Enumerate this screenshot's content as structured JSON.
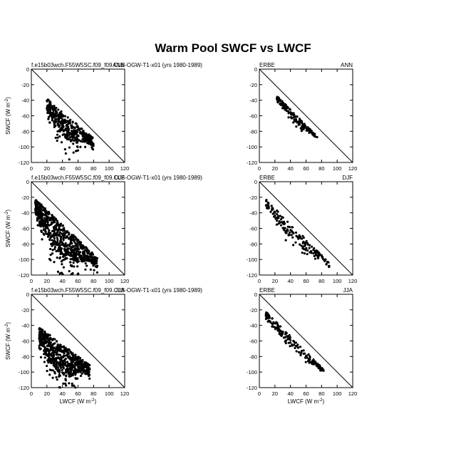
{
  "figure": {
    "title": "Warm Pool SWCF vs LWCF"
  },
  "chart_data": [
    {
      "type": "scatter",
      "left_label": "f.e15b03wch.F55W5SC.f09_f09.CLB-OGW-T1-x01 (yrs 1980-1989)",
      "right_label": "ANN",
      "xlabel": "",
      "ylabel": "SWCF (W m^-2)",
      "xlim": [
        0,
        120
      ],
      "ylim": [
        -120,
        0
      ],
      "xticks": [
        "0",
        "20",
        "40",
        "60",
        "80",
        "100",
        "120"
      ],
      "yticks": [
        "0",
        "-20",
        "-40",
        "-60",
        "-80",
        "-100",
        "-120"
      ],
      "reference_line": [
        [
          0,
          0
        ],
        [
          120,
          -120
        ]
      ],
      "cloud": {
        "xmin": 20,
        "xmax": 80,
        "base": -38,
        "slope": -0.85,
        "spread": 30,
        "tail": 0.9,
        "n": 420,
        "seed": 11
      }
    },
    {
      "type": "scatter",
      "left_label": "ERBE",
      "right_label": "ANN",
      "xlabel": "",
      "ylabel": "",
      "xlim": [
        0,
        120
      ],
      "ylim": [
        -120,
        0
      ],
      "xticks": [
        "0",
        "20",
        "40",
        "60",
        "80",
        "100",
        "120"
      ],
      "yticks": [
        "0",
        "-20",
        "-40",
        "-60",
        "-80",
        "-100",
        "-120"
      ],
      "reference_line": [
        [
          0,
          0
        ],
        [
          120,
          -120
        ]
      ],
      "cloud": {
        "xmin": 22,
        "xmax": 75,
        "base": -34,
        "slope": -1.0,
        "spread": 10,
        "tail": 0.6,
        "n": 160,
        "seed": 23
      }
    },
    {
      "type": "scatter",
      "left_label": "f.e15b03wch.F55W5SC.f09_f09.CLB-OGW-T1-x01 (yrs 1980-1989)",
      "right_label": "DJF",
      "xlabel": "",
      "ylabel": "SWCF (W m^-2)",
      "xlim": [
        0,
        120
      ],
      "ylim": [
        -120,
        0
      ],
      "xticks": [
        "0",
        "20",
        "40",
        "60",
        "80",
        "100",
        "120"
      ],
      "yticks": [
        "0",
        "-20",
        "-40",
        "-60",
        "-80",
        "-100",
        "-120"
      ],
      "reference_line": [
        [
          0,
          0
        ],
        [
          120,
          -120
        ]
      ],
      "cloud": {
        "xmin": 5,
        "xmax": 85,
        "base": -22,
        "slope": -0.95,
        "spread": 40,
        "tail": 0.9,
        "n": 700,
        "seed": 37
      }
    },
    {
      "type": "scatter",
      "left_label": "ERBE",
      "right_label": "DJF",
      "xlabel": "",
      "ylabel": "",
      "xlim": [
        0,
        120
      ],
      "ylim": [
        -120,
        0
      ],
      "xticks": [
        "0",
        "20",
        "40",
        "60",
        "80",
        "100",
        "120"
      ],
      "yticks": [
        "0",
        "-20",
        "-40",
        "-60",
        "-80",
        "-100",
        "-120"
      ],
      "reference_line": [
        [
          0,
          0
        ],
        [
          120,
          -120
        ]
      ],
      "cloud": {
        "xmin": 8,
        "xmax": 90,
        "base": -22,
        "slope": -1.0,
        "spread": 18,
        "tail": 0.6,
        "n": 170,
        "seed": 41
      }
    },
    {
      "type": "scatter",
      "left_label": "f.e15b03wch.F55W5SC.f09_f09.CLB-OGW-T1-x01 (yrs 1980-1989)",
      "right_label": "JJA",
      "xlabel": "LWCF (W m^-2)",
      "ylabel": "SWCF (W m^-2)",
      "xlim": [
        0,
        120
      ],
      "ylim": [
        -120,
        0
      ],
      "xticks": [
        "0",
        "20",
        "40",
        "60",
        "80",
        "100",
        "120"
      ],
      "yticks": [
        "0",
        "-20",
        "-40",
        "-60",
        "-80",
        "-100",
        "-120"
      ],
      "reference_line": [
        [
          0,
          0
        ],
        [
          120,
          -120
        ]
      ],
      "cloud": {
        "xmin": 10,
        "xmax": 75,
        "base": -42,
        "slope": -0.75,
        "spread": 40,
        "tail": 0.8,
        "n": 650,
        "seed": 53
      }
    },
    {
      "type": "scatter",
      "left_label": "ERBE",
      "right_label": "JJA",
      "xlabel": "LWCF (W m^-2)",
      "ylabel": "",
      "xlim": [
        0,
        120
      ],
      "ylim": [
        -120,
        0
      ],
      "xticks": [
        "0",
        "20",
        "40",
        "60",
        "80",
        "100",
        "120"
      ],
      "yticks": [
        "0",
        "-20",
        "-40",
        "-60",
        "-80",
        "-100",
        "-120"
      ],
      "reference_line": [
        [
          0,
          0
        ],
        [
          120,
          -120
        ]
      ],
      "cloud": {
        "xmin": 8,
        "xmax": 85,
        "base": -22,
        "slope": -1.0,
        "spread": 14,
        "tail": 0.5,
        "n": 170,
        "seed": 67
      }
    }
  ]
}
